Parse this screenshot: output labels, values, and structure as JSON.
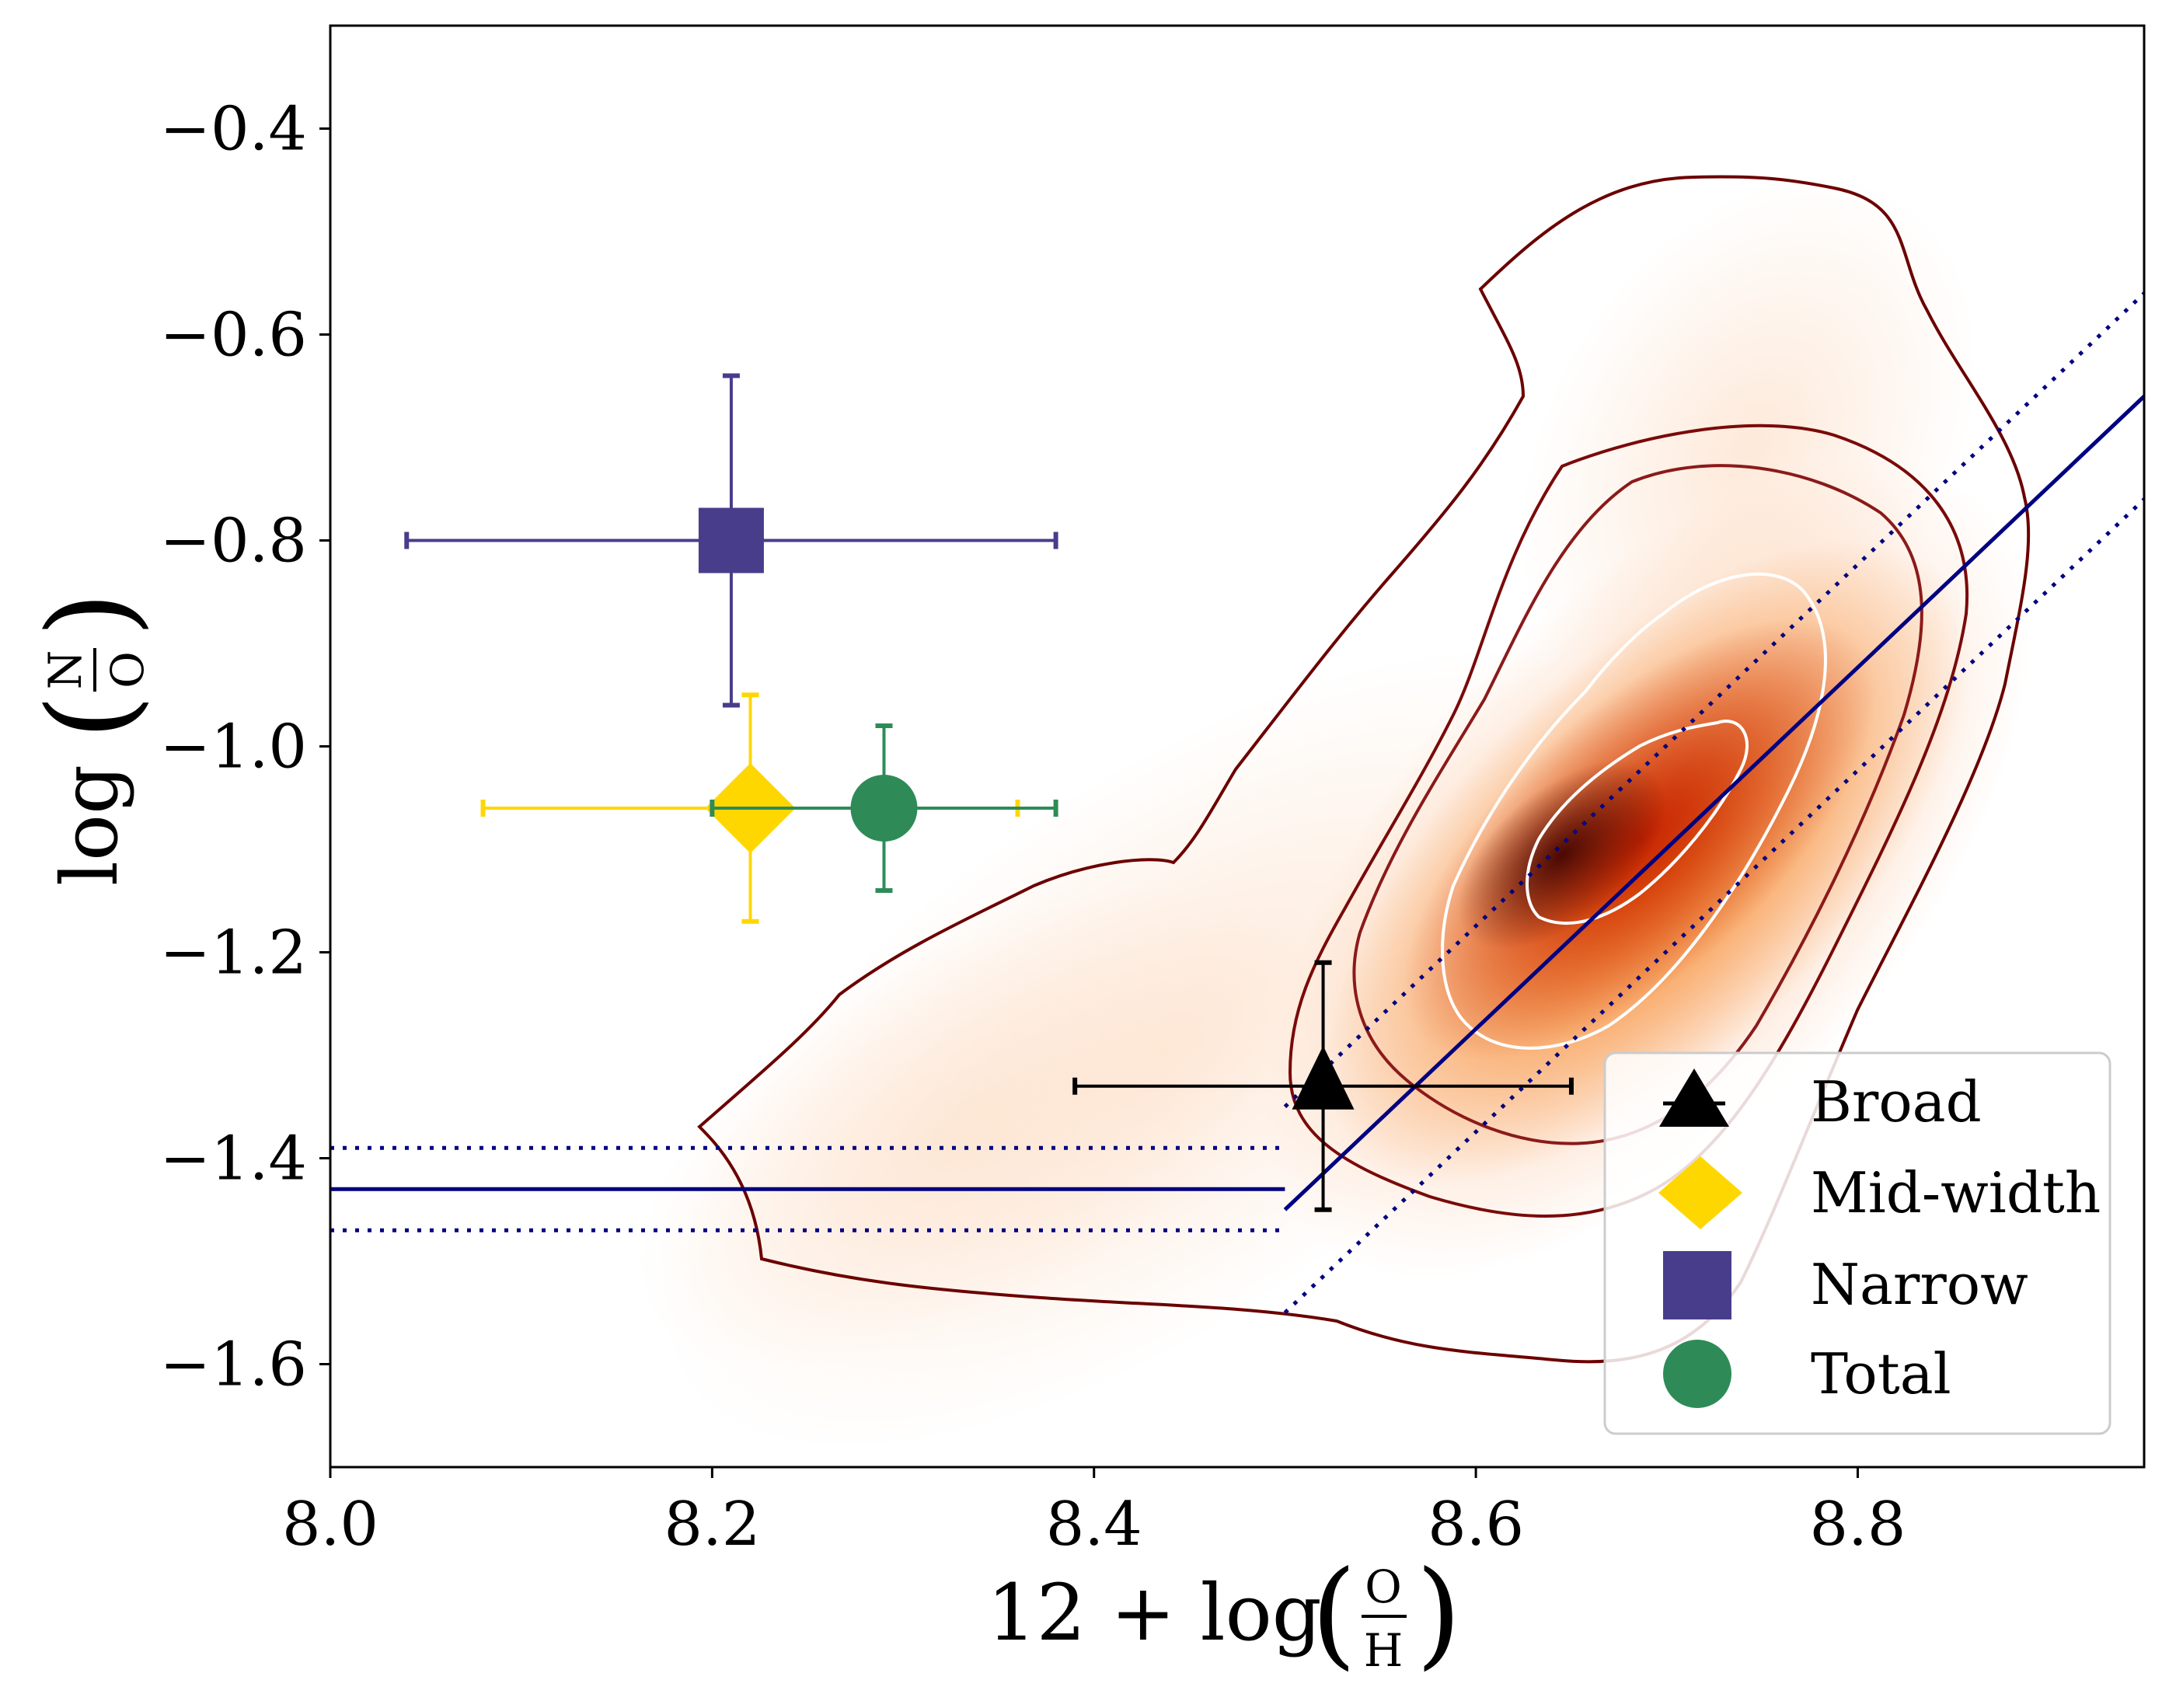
{
  "colors": {
    "narrow": "#483D8B",
    "mid_width": "#FFD700",
    "total": "#2E8B57",
    "broad": "#000000",
    "fit_line": "#000080",
    "contour_outer": "#6B0000",
    "contour_inner": "#FFFFFF",
    "density_low": "#FDE5D2",
    "density_mid": "#F47A10",
    "density_high": "#B00000",
    "density_peak": "#3A0000"
  },
  "chart_data": {
    "type": "scatter",
    "xlabel": "12 + log(O/H)",
    "ylabel": "log(N/O)",
    "xlim": [
      8.0,
      8.95
    ],
    "ylim": [
      -1.7,
      -0.3
    ],
    "xticks": [
      8.0,
      8.2,
      8.4,
      8.6,
      8.8
    ],
    "xtick_labels": [
      "8.0",
      "8.2",
      "8.4",
      "8.6",
      "8.8"
    ],
    "yticks": [
      -0.4,
      -0.6,
      -0.8,
      -1.0,
      -1.2,
      -1.4,
      -1.6
    ],
    "ytick_labels": [
      "−0.4",
      "−0.6",
      "−0.8",
      "−1.0",
      "−1.2",
      "−1.4",
      "−1.6"
    ],
    "points": [
      {
        "name": "Broad",
        "marker": "triangle",
        "x": 8.52,
        "y": -1.33,
        "xerr": [
          0.13,
          0.13
        ],
        "yerr": [
          0.12,
          0.12
        ]
      },
      {
        "name": "Mid-width",
        "marker": "diamond",
        "x": 8.22,
        "y": -1.06,
        "xerr": [
          0.14,
          0.14
        ],
        "yerr": [
          0.11,
          0.11
        ]
      },
      {
        "name": "Narrow",
        "marker": "square",
        "x": 8.21,
        "y": -0.8,
        "xerr": [
          0.17,
          0.17
        ],
        "yerr": [
          0.16,
          0.16
        ]
      },
      {
        "name": "Total",
        "marker": "circle",
        "x": 8.29,
        "y": -1.06,
        "xerr": [
          0.09,
          0.09
        ],
        "yerr": [
          0.08,
          0.08
        ]
      }
    ],
    "reference_relation": {
      "plateau": {
        "x": [
          8.0,
          8.5
        ],
        "y": -1.43,
        "dispersion": 0.04
      },
      "slope_segment": {
        "x": [
          8.5,
          8.95
        ],
        "y": [
          -1.45,
          -0.66
        ],
        "dispersion": 0.1
      }
    },
    "density_background": {
      "description": "hexbin density with contours",
      "peak": [
        8.64,
        -1.11
      ]
    },
    "legend": {
      "location": "lower right",
      "entries": [
        "Broad",
        "Mid-width",
        "Narrow",
        "Total"
      ]
    }
  }
}
